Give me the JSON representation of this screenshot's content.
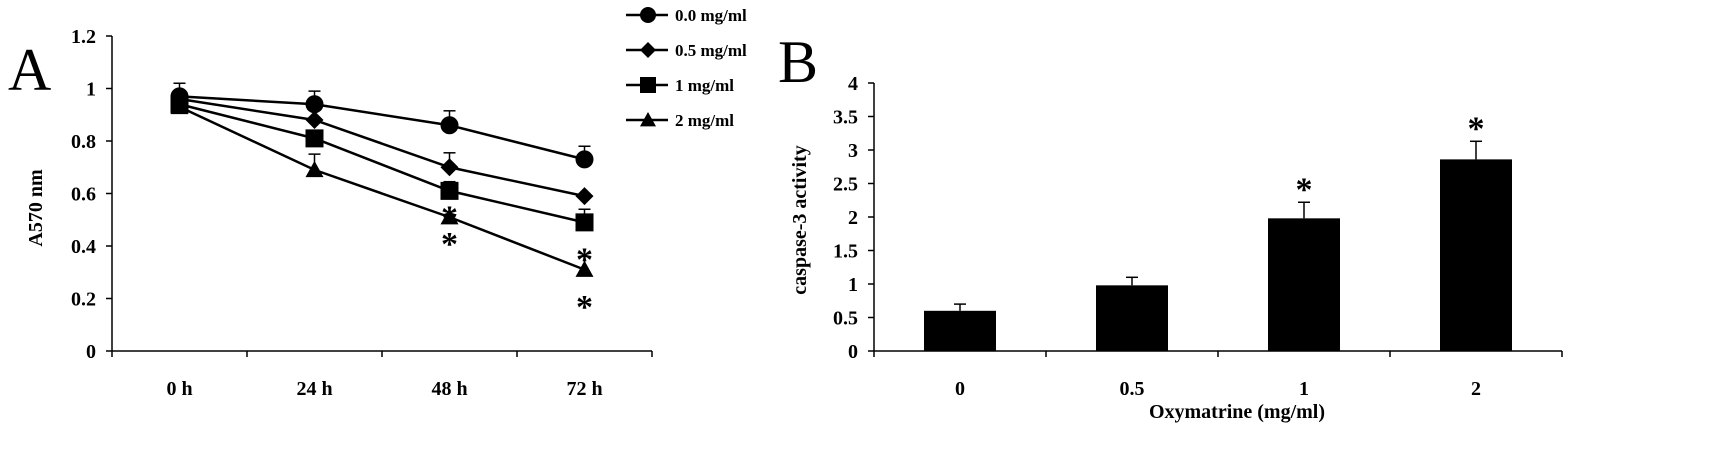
{
  "chart_data": [
    {
      "panel": "A",
      "type": "line",
      "categories": [
        "0 h",
        "24 h",
        "48 h",
        "72 h"
      ],
      "ylabel": "A570 nm",
      "xlabel": "",
      "ylim": [
        0,
        1.2
      ],
      "yticks": [
        0,
        0.2,
        0.4,
        0.6,
        0.8,
        1,
        1.2
      ],
      "ytick_labels": [
        "0",
        "0.2",
        "0.4",
        "0.6",
        "0.8",
        "1",
        "1.2"
      ],
      "series": [
        {
          "name": "0.0 mg/ml",
          "marker": "circle",
          "values": [
            0.97,
            0.94,
            0.86,
            0.73
          ],
          "errors": [
            0.05,
            0.05,
            0.055,
            0.05
          ]
        },
        {
          "name": "0.5 mg/ml",
          "marker": "diamond",
          "values": [
            0.96,
            0.88,
            0.7,
            0.59
          ],
          "errors": [
            0.0,
            0.0,
            0.055,
            0.0
          ]
        },
        {
          "name": "1 mg/ml",
          "marker": "square",
          "values": [
            0.94,
            0.81,
            0.61,
            0.49
          ],
          "errors": [
            0.0,
            0.0,
            0.035,
            0.05
          ]
        },
        {
          "name": "2 mg/ml",
          "marker": "triangle",
          "values": [
            0.93,
            0.69,
            0.51,
            0.31
          ],
          "errors": [
            0.0,
            0.06,
            0.0,
            0.05
          ]
        }
      ],
      "annotations": [
        {
          "text": "*",
          "category": "48 h",
          "y": 0.55
        },
        {
          "text": "*",
          "category": "48 h",
          "y": 0.45
        },
        {
          "text": "*",
          "category": "72 h",
          "y": 0.39
        },
        {
          "text": "*",
          "category": "72 h",
          "y": 0.21
        }
      ],
      "legend": "top-right"
    },
    {
      "panel": "B",
      "type": "bar",
      "categories": [
        "0",
        "0.5",
        "1",
        "2"
      ],
      "values": [
        0.6,
        0.98,
        1.98,
        2.86
      ],
      "errors": [
        0.1,
        0.12,
        0.24,
        0.27
      ],
      "xlabel": "Oxymatrine (mg/ml)",
      "ylabel": "caspase-3 activity",
      "ylim": [
        0,
        4
      ],
      "yticks": [
        0,
        0.5,
        1,
        1.5,
        2,
        2.5,
        3,
        3.5,
        4
      ],
      "ytick_labels": [
        "0",
        "0.5",
        "1",
        "1.5",
        "2",
        "2.5",
        "3",
        "3.5",
        "4"
      ],
      "significant": [
        false,
        false,
        true,
        true
      ],
      "significance_mark": "*",
      "bar_color": "#000000"
    }
  ]
}
